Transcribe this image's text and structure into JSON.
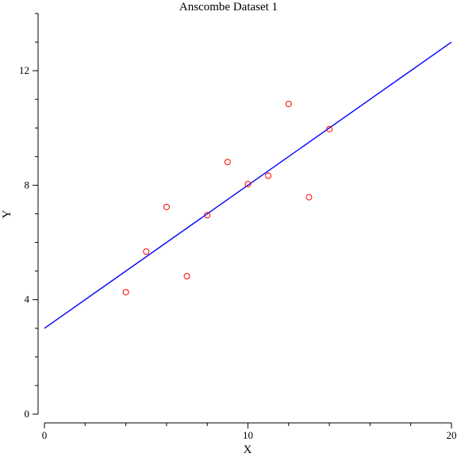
{
  "chart_data": {
    "type": "scatter",
    "title": "Anscombe Dataset 1",
    "xlabel": "X",
    "ylabel": "Y",
    "xlim": [
      0,
      20
    ],
    "ylim": [
      0,
      14
    ],
    "grid": false,
    "xticks": {
      "major": [
        0,
        10,
        20
      ],
      "labels": [
        "0",
        "10",
        "20"
      ],
      "minor": [
        2,
        4,
        6,
        8,
        12,
        14,
        16,
        18
      ]
    },
    "yticks": {
      "major": [
        0,
        4,
        8,
        12
      ],
      "labels": [
        "0",
        "4",
        "8",
        "12"
      ],
      "minor": [
        1,
        2,
        3,
        5,
        6,
        7,
        9,
        10,
        11,
        13,
        14
      ]
    },
    "series": [
      {
        "kind": "points",
        "marker": "open-circle",
        "color": "#ff0000",
        "x": [
          10,
          8,
          13,
          9,
          11,
          14,
          6,
          4,
          12,
          7,
          5
        ],
        "y": [
          8.04,
          6.95,
          7.58,
          8.81,
          8.33,
          9.96,
          7.24,
          4.26,
          10.84,
          4.82,
          5.68
        ]
      },
      {
        "kind": "line",
        "color": "#0000ff",
        "x": [
          0,
          20
        ],
        "y": [
          3.0,
          13.0
        ]
      }
    ]
  }
}
